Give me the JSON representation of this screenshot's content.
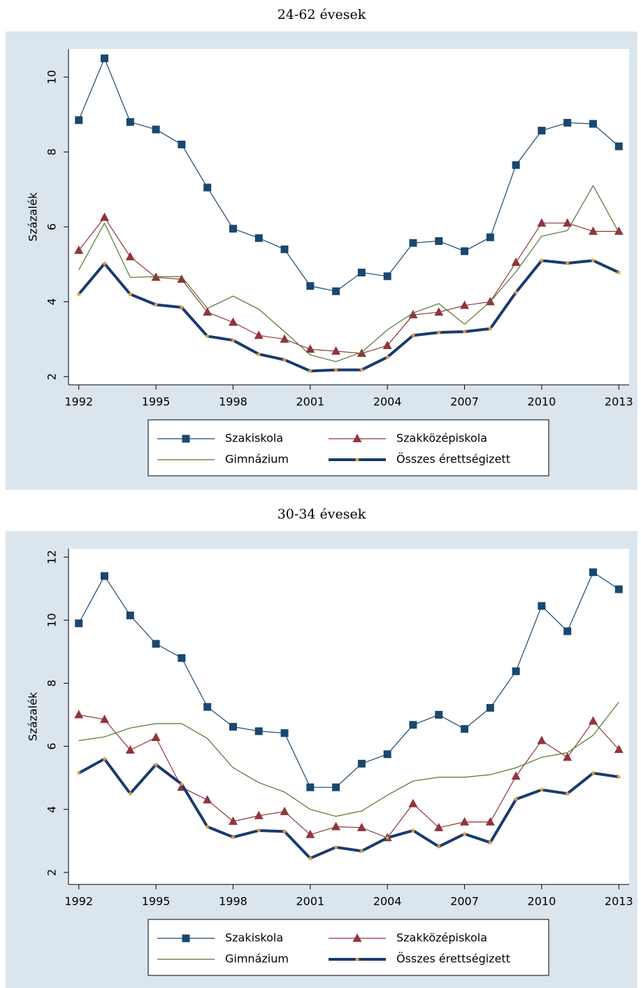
{
  "chart_data": [
    {
      "type": "line",
      "title": "24-62 évesek",
      "ylabel": "Százalék",
      "x": [
        1992,
        1993,
        1994,
        1995,
        1996,
        1997,
        1998,
        1999,
        2000,
        2001,
        2002,
        2003,
        2004,
        2005,
        2006,
        2007,
        2008,
        2009,
        2010,
        2011,
        2012,
        2013
      ],
      "xlim": [
        1991.6,
        2013.4
      ],
      "xticks": [
        1992,
        1995,
        1998,
        2001,
        2004,
        2007,
        2010,
        2013
      ],
      "ylim": [
        1.78,
        10.75
      ],
      "yticks": [
        2,
        4,
        6,
        8,
        10
      ],
      "grid": false,
      "series": [
        {
          "name": "Szakiskola",
          "color": "#1a476f",
          "marker": "square",
          "width": 1.2,
          "values": [
            8.85,
            10.5,
            8.8,
            8.6,
            8.2,
            7.05,
            5.95,
            5.7,
            5.4,
            4.42,
            4.28,
            4.78,
            4.68,
            5.57,
            5.62,
            5.35,
            5.72,
            7.65,
            8.57,
            8.78,
            8.75,
            8.15
          ]
        },
        {
          "name": "Szakközépiskola",
          "color": "#90353b",
          "marker": "triangle",
          "width": 1.2,
          "values": [
            5.37,
            6.25,
            5.2,
            4.65,
            4.6,
            3.72,
            3.45,
            3.1,
            3.0,
            2.73,
            2.68,
            2.62,
            2.83,
            3.65,
            3.72,
            3.9,
            4.0,
            5.05,
            6.1,
            6.1,
            5.88,
            5.88
          ]
        },
        {
          "name": "Gimnázium",
          "color": "#55752f",
          "marker": "none",
          "width": 1.2,
          "values": [
            4.85,
            6.1,
            4.65,
            4.67,
            4.67,
            3.82,
            4.15,
            3.8,
            3.2,
            2.58,
            2.4,
            2.65,
            3.25,
            3.7,
            3.95,
            3.4,
            4.0,
            4.8,
            5.75,
            5.9,
            7.1,
            5.85
          ]
        },
        {
          "name": "Összes érettségizett",
          "color": "#1a3a6f",
          "marker": "star",
          "marker_color": "#e8a33a",
          "width": 4,
          "values": [
            4.2,
            5.02,
            4.2,
            3.92,
            3.85,
            3.08,
            2.97,
            2.6,
            2.45,
            2.15,
            2.18,
            2.18,
            2.52,
            3.1,
            3.18,
            3.2,
            3.28,
            4.25,
            5.1,
            5.03,
            5.1,
            4.78
          ]
        }
      ]
    },
    {
      "type": "line",
      "title": "30-34 évesek",
      "ylabel": "Százalék",
      "x": [
        1992,
        1993,
        1994,
        1995,
        1996,
        1997,
        1998,
        1999,
        2000,
        2001,
        2002,
        2003,
        2004,
        2005,
        2006,
        2007,
        2008,
        2009,
        2010,
        2011,
        2012,
        2013
      ],
      "xlim": [
        1991.6,
        2013.4
      ],
      "xticks": [
        1992,
        1995,
        1998,
        2001,
        2004,
        2007,
        2010,
        2013
      ],
      "ylim": [
        1.62,
        12.27
      ],
      "yticks": [
        2,
        4,
        6,
        8,
        10,
        12
      ],
      "grid": false,
      "series": [
        {
          "name": "Szakiskola",
          "color": "#1a476f",
          "marker": "square",
          "width": 1.2,
          "values": [
            9.9,
            11.4,
            10.15,
            9.25,
            8.8,
            7.25,
            6.62,
            6.48,
            6.42,
            4.7,
            4.7,
            5.45,
            5.75,
            6.68,
            7.0,
            6.55,
            7.22,
            8.38,
            10.45,
            9.65,
            11.52,
            10.98
          ]
        },
        {
          "name": "Szakközépiskola",
          "color": "#90353b",
          "marker": "triangle",
          "width": 1.2,
          "values": [
            7.0,
            6.85,
            5.88,
            6.28,
            4.7,
            4.3,
            3.62,
            3.8,
            3.93,
            3.2,
            3.45,
            3.42,
            3.1,
            4.18,
            3.42,
            3.6,
            3.6,
            5.05,
            6.18,
            5.65,
            6.8,
            5.9
          ]
        },
        {
          "name": "Gimnázium",
          "color": "#55752f",
          "marker": "none",
          "width": 1.2,
          "values": [
            6.18,
            6.3,
            6.58,
            6.72,
            6.72,
            6.25,
            5.32,
            4.85,
            4.55,
            4.0,
            3.78,
            3.95,
            4.45,
            4.9,
            5.02,
            5.02,
            5.1,
            5.32,
            5.65,
            5.8,
            6.35,
            7.4
          ]
        },
        {
          "name": "Összes érettségizett",
          "color": "#1a3a6f",
          "marker": "star",
          "marker_color": "#e8a33a",
          "width": 4,
          "values": [
            5.15,
            5.6,
            4.5,
            5.42,
            4.8,
            3.45,
            3.12,
            3.33,
            3.3,
            2.45,
            2.8,
            2.68,
            3.1,
            3.33,
            2.82,
            3.22,
            2.95,
            4.32,
            4.62,
            4.5,
            5.15,
            5.03
          ]
        }
      ]
    }
  ]
}
